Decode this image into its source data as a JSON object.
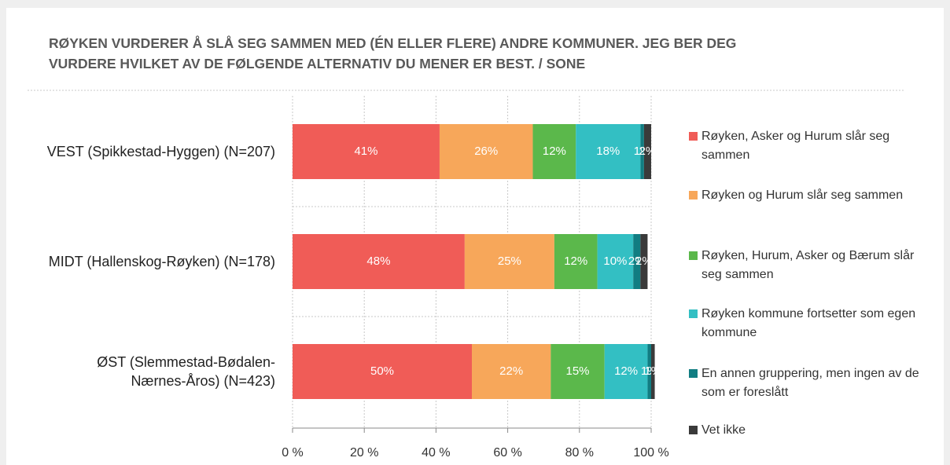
{
  "chart_data": {
    "type": "stacked-bar-horizontal",
    "title": "RØYKEN VURDERER Å SLÅ SEG SAMMEN MED (ÉN ELLER FLERE) ANDRE KOMMUNER. JEG BER DEG VURDERE HVILKET AV DE FØLGENDE ALTERNATIV DU MENER ER BEST. / SONE",
    "categories": [
      "VEST (Spikkestad-Hyggen) (N=207)",
      "MIDT (Hallenskog-Røyken) (N=178)",
      "ØST (Slemmestad-Bødalen-\nNærnes-Åros) (N=423)"
    ],
    "series": [
      {
        "name": "Røyken, Asker og Hurum slår seg sammen",
        "color": "#f05c57",
        "values": [
          41,
          48,
          50
        ],
        "value_labels": [
          "41%",
          "48%",
          "50%"
        ]
      },
      {
        "name": "Røyken og Hurum slår seg sammen",
        "color": "#f7a75a",
        "values": [
          26,
          25,
          22
        ],
        "value_labels": [
          "26%",
          "25%",
          "22%"
        ]
      },
      {
        "name": "Røyken, Hurum, Asker og Bærum slår seg sammen",
        "color": "#5bb84b",
        "values": [
          12,
          12,
          15
        ],
        "value_labels": [
          "12%",
          "12%",
          "15%"
        ]
      },
      {
        "name": "Røyken kommune fortsetter som egen kommune",
        "color": "#33bfc3",
        "values": [
          18,
          10,
          12
        ],
        "value_labels": [
          "18%",
          "10%",
          "12%"
        ]
      },
      {
        "name": "En annen gruppering, men ingen av de som er foreslått",
        "color": "#117d82",
        "values": [
          1,
          2,
          1
        ],
        "value_labels": [
          "1%",
          "2%",
          "1%"
        ]
      },
      {
        "name": "Vet ikke",
        "color": "#3a3a3a",
        "values": [
          2,
          2,
          1
        ],
        "value_labels": [
          "2%",
          "2%",
          "1%"
        ]
      }
    ],
    "xlim": [
      0,
      100
    ],
    "xticks": [
      {
        "value": 0,
        "label": "0 %"
      },
      {
        "value": 20,
        "label": "20 %"
      },
      {
        "value": 40,
        "label": "40 %"
      },
      {
        "value": 60,
        "label": "60 %"
      },
      {
        "value": 80,
        "label": "80 %"
      },
      {
        "value": 100,
        "label": "100 %"
      }
    ],
    "grid": true,
    "legend": "right"
  }
}
